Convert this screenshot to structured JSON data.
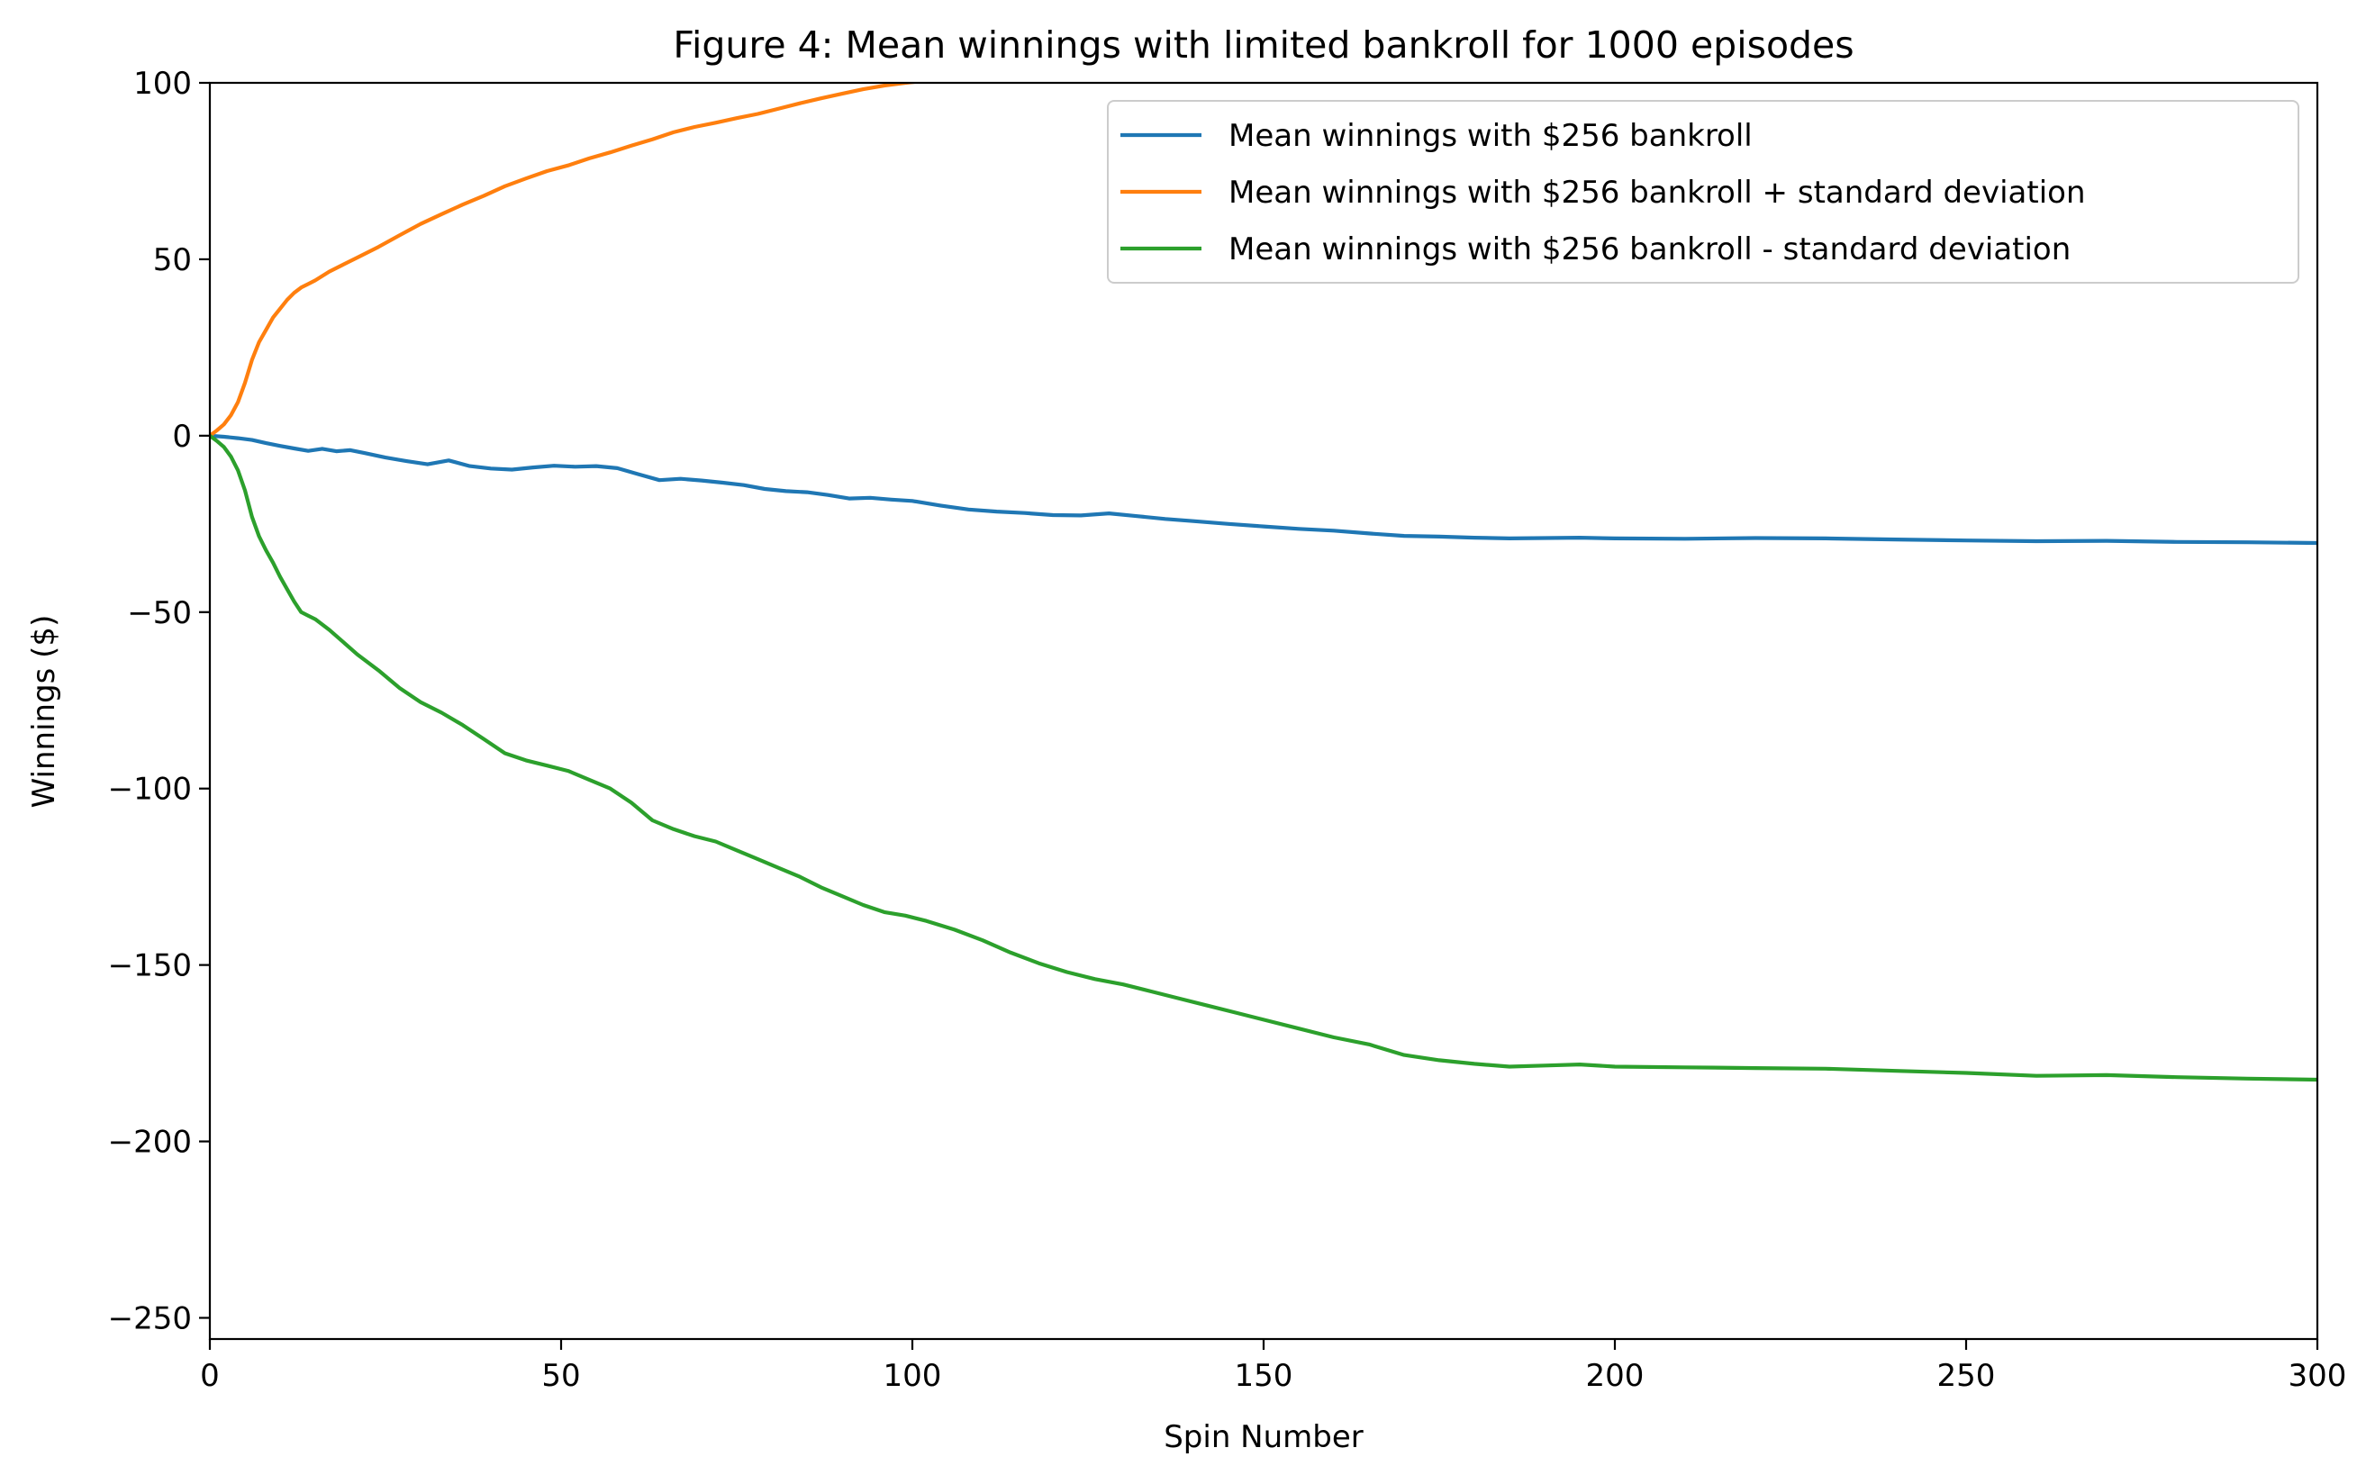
{
  "chart_data": {
    "type": "line",
    "title": "Figure 4: Mean winnings with limited bankroll for 1000 episodes",
    "xlabel": "Spin Number",
    "ylabel": "Winnings ($)",
    "xlim": [
      0,
      300
    ],
    "ylim": [
      -256,
      100
    ],
    "xticks": [
      0,
      50,
      100,
      150,
      200,
      250,
      300
    ],
    "xtick_labels": [
      "0",
      "50",
      "100",
      "150",
      "200",
      "250",
      "300"
    ],
    "yticks": [
      100,
      50,
      0,
      -50,
      -100,
      -150,
      -200,
      -250
    ],
    "ytick_labels": [
      "100",
      "50",
      "0",
      "−50",
      "−100",
      "−150",
      "−200",
      "−250"
    ],
    "grid": false,
    "legend_position": "upper right",
    "series": [
      {
        "name": "Mean winnings with $256 bankroll",
        "color": "#1f77b4",
        "x": [
          0,
          2,
          4,
          6,
          8,
          10,
          12,
          14,
          16,
          18,
          20,
          22,
          25,
          28,
          31,
          34,
          37,
          40,
          43,
          46,
          49,
          52,
          55,
          58,
          61,
          64,
          67,
          70,
          73,
          76,
          79,
          82,
          85,
          88,
          91,
          94,
          97,
          100,
          104,
          108,
          112,
          116,
          120,
          124,
          128,
          132,
          136,
          140,
          145,
          150,
          155,
          160,
          165,
          170,
          175,
          180,
          185,
          190,
          195,
          200,
          210,
          220,
          230,
          240,
          250,
          260,
          270,
          280,
          290,
          300
        ],
        "y": [
          0,
          -0.3,
          -0.7,
          -1.2,
          -2.1,
          -2.9,
          -3.6,
          -4.3,
          -3.7,
          -4.4,
          -4.1,
          -4.9,
          -6.2,
          -7.2,
          -8.1,
          -7.0,
          -8.6,
          -9.3,
          -9.6,
          -9.0,
          -8.5,
          -8.8,
          -8.6,
          -9.2,
          -10.9,
          -12.6,
          -12.2,
          -12.7,
          -13.3,
          -14.0,
          -15.1,
          -15.7,
          -16.0,
          -16.8,
          -17.8,
          -17.6,
          -18.1,
          -18.5,
          -19.8,
          -20.9,
          -21.5,
          -21.9,
          -22.5,
          -22.6,
          -22.0,
          -22.8,
          -23.6,
          -24.2,
          -25.0,
          -25.7,
          -26.4,
          -26.9,
          -27.7,
          -28.4,
          -28.6,
          -28.9,
          -29.1,
          -29.0,
          -28.9,
          -29.1,
          -29.2,
          -29.0,
          -29.1,
          -29.4,
          -29.7,
          -29.9,
          -29.8,
          -30.1,
          -30.2,
          -30.4
        ]
      },
      {
        "name": "Mean winnings with $256 bankroll + standard deviation",
        "color": "#ff7f0e",
        "x": [
          0,
          1,
          2,
          3,
          4,
          5,
          6,
          7,
          8,
          9,
          10,
          11,
          12,
          13,
          14,
          15,
          17,
          19,
          21,
          24,
          27,
          30,
          33,
          36,
          39,
          42,
          45,
          48,
          51,
          54,
          57,
          60,
          63,
          66,
          69,
          72,
          75,
          78,
          81,
          84,
          87,
          90,
          93,
          96,
          99,
          102
        ],
        "y": [
          0,
          1.5,
          3.2,
          5.8,
          9.5,
          15.0,
          21.5,
          26.5,
          30.0,
          33.5,
          36.0,
          38.5,
          40.5,
          42.0,
          43.0,
          44.0,
          46.5,
          48.5,
          50.5,
          53.5,
          56.8,
          60.0,
          62.8,
          65.5,
          68.0,
          70.7,
          72.9,
          75.0,
          76.6,
          78.6,
          80.3,
          82.2,
          84.0,
          86.0,
          87.5,
          88.7,
          90.0,
          91.2,
          92.7,
          94.2,
          95.6,
          96.9,
          98.2,
          99.2,
          100.0,
          100.6
        ]
      },
      {
        "name": "Mean winnings with $256 bankroll - standard deviation",
        "color": "#2ca02c",
        "x": [
          0,
          1,
          2,
          3,
          4,
          5,
          6,
          7,
          8,
          9,
          10,
          11,
          12,
          13,
          14,
          15,
          17,
          19,
          21,
          24,
          27,
          30,
          33,
          36,
          39,
          42,
          45,
          48,
          51,
          54,
          57,
          60,
          63,
          66,
          69,
          72,
          75,
          78,
          81,
          84,
          87,
          90,
          93,
          96,
          99,
          102,
          106,
          110,
          114,
          118,
          122,
          126,
          130,
          134,
          138,
          142,
          146,
          150,
          155,
          160,
          165,
          170,
          175,
          180,
          185,
          190,
          195,
          200,
          210,
          220,
          230,
          240,
          250,
          260,
          270,
          280,
          290,
          300
        ],
        "y": [
          0,
          -1.5,
          -3.2,
          -5.9,
          -9.8,
          -15.5,
          -23.0,
          -28.5,
          -32.5,
          -36.0,
          -40.0,
          -43.5,
          -47.0,
          -50.0,
          -51.0,
          -52.0,
          -55.0,
          -58.5,
          -62.0,
          -66.5,
          -71.5,
          -75.5,
          -78.5,
          -82.0,
          -86.0,
          -90.0,
          -92.0,
          -93.5,
          -95.0,
          -97.5,
          -100.0,
          -104.0,
          -109.0,
          -111.5,
          -113.5,
          -115.0,
          -117.5,
          -120.0,
          -122.5,
          -125.0,
          -128.0,
          -130.5,
          -133.0,
          -135.0,
          -136.0,
          -137.5,
          -140.0,
          -143.0,
          -146.5,
          -149.5,
          -152.0,
          -154.0,
          -155.5,
          -157.5,
          -159.5,
          -161.5,
          -163.5,
          -165.5,
          -168.0,
          -170.5,
          -172.5,
          -175.5,
          -177.0,
          -178.0,
          -178.8,
          -178.5,
          -178.2,
          -178.8,
          -179.0,
          -179.2,
          -179.4,
          -180.0,
          -180.6,
          -181.4,
          -181.2,
          -181.8,
          -182.2,
          -182.5
        ]
      }
    ]
  }
}
